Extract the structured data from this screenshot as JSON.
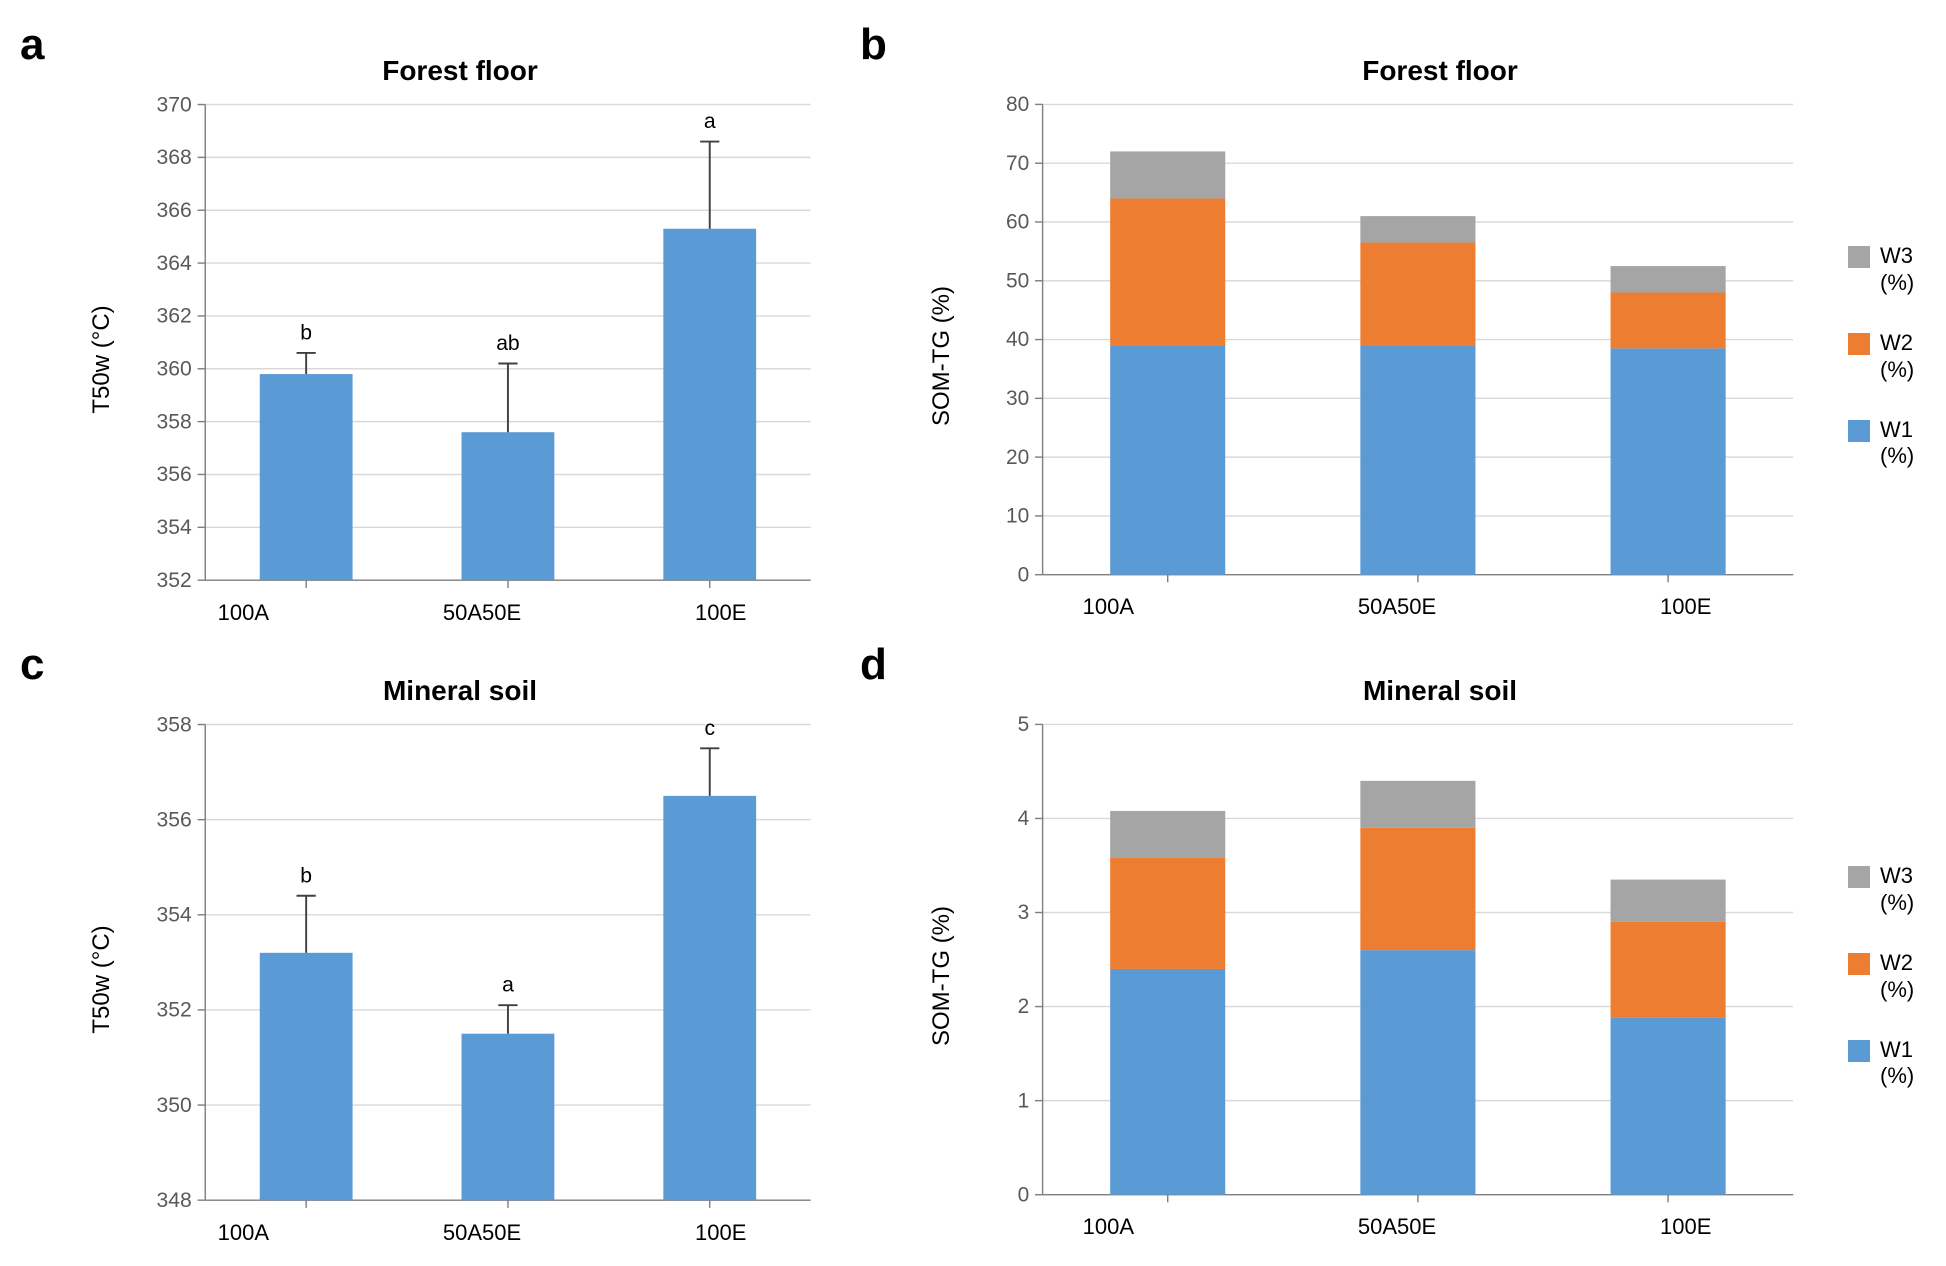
{
  "colors": {
    "bar_fill": "#5b9bd5",
    "stack_w1": "#5b9bd5",
    "stack_w2": "#ed7d31",
    "stack_w3": "#a5a5a5",
    "axis": "#808080",
    "grid": "#d9d9d9",
    "tick_text": "#595959",
    "error_bar": "#404040",
    "annotation_text": "#000000",
    "background": "#ffffff"
  },
  "typography": {
    "panel_label_fontsize": 44,
    "title_fontsize": 28,
    "axis_label_fontsize": 24,
    "tick_fontsize": 22,
    "annotation_fontsize": 22,
    "legend_fontsize": 22,
    "font_family": "Arial"
  },
  "panels": {
    "a": {
      "label": "a",
      "type": "bar",
      "title": "Forest floor",
      "ylabel": "T50w (°C)",
      "categories": [
        "100A",
        "50A50E",
        "100E"
      ],
      "values": [
        359.8,
        357.6,
        365.3
      ],
      "errors": [
        0.8,
        2.6,
        3.3
      ],
      "annotations": [
        "b",
        "ab",
        "a"
      ],
      "ylim": [
        352,
        370
      ],
      "ytick_step": 2,
      "bar_color": "#5b9bd5",
      "bar_width": 0.46
    },
    "b": {
      "label": "b",
      "type": "stacked_bar",
      "title": "Forest floor",
      "ylabel": "SOM-TG (%)",
      "categories": [
        "100A",
        "50A50E",
        "100E"
      ],
      "series": [
        {
          "name": "W1",
          "label": "W1\n(%)",
          "color": "#5b9bd5",
          "values": [
            39.0,
            39.0,
            38.5
          ]
        },
        {
          "name": "W2",
          "label": "W2\n(%)",
          "color": "#ed7d31",
          "values": [
            25.0,
            17.5,
            9.5
          ]
        },
        {
          "name": "W3",
          "label": "W3\n(%)",
          "color": "#a5a5a5",
          "values": [
            8.0,
            4.5,
            4.5
          ]
        }
      ],
      "ylim": [
        0,
        80
      ],
      "ytick_step": 10,
      "bar_width": 0.46
    },
    "c": {
      "label": "c",
      "type": "bar",
      "title": "Mineral soil",
      "ylabel": "T50w (°C)",
      "categories": [
        "100A",
        "50A50E",
        "100E"
      ],
      "values": [
        353.2,
        351.5,
        356.5
      ],
      "errors": [
        1.2,
        0.6,
        1.0
      ],
      "annotations": [
        "b",
        "a",
        "c"
      ],
      "ylim": [
        348,
        358
      ],
      "ytick_step": 2,
      "bar_color": "#5b9bd5",
      "bar_width": 0.46
    },
    "d": {
      "label": "d",
      "type": "stacked_bar",
      "title": "Mineral soil",
      "ylabel": "SOM-TG (%)",
      "categories": [
        "100A",
        "50A50E",
        "100E"
      ],
      "series": [
        {
          "name": "W1",
          "label": "W1\n(%)",
          "color": "#5b9bd5",
          "values": [
            2.4,
            2.6,
            1.88
          ]
        },
        {
          "name": "W2",
          "label": "W2\n(%)",
          "color": "#ed7d31",
          "values": [
            1.18,
            1.3,
            1.02
          ]
        },
        {
          "name": "W3",
          "label": "W3\n(%)",
          "color": "#a5a5a5",
          "values": [
            0.5,
            0.5,
            0.45
          ]
        }
      ],
      "ylim": [
        0,
        5
      ],
      "ytick_step": 1,
      "bar_width": 0.46
    }
  },
  "legend_order": [
    "W3",
    "W2",
    "W1"
  ]
}
